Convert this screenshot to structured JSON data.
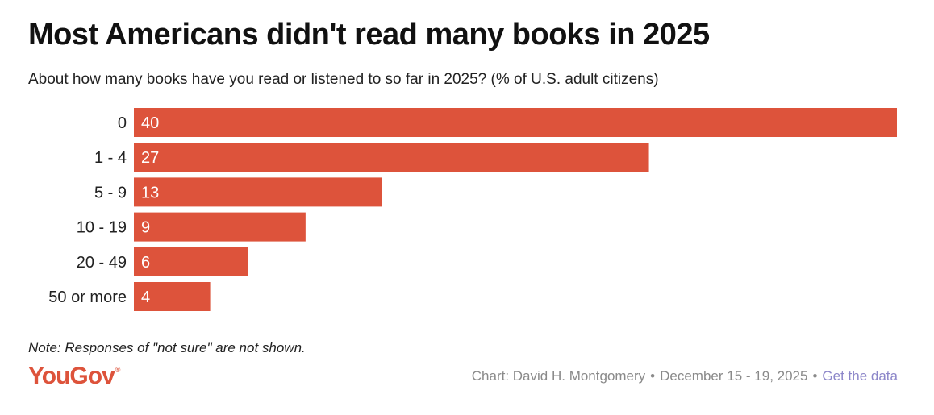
{
  "title": "Most Americans didn't read many books in 2025",
  "subtitle": "About how many books have you read or listened to so far in 2025? (% of U.S. adult citizens)",
  "chart_data": {
    "type": "bar",
    "orientation": "horizontal",
    "categories": [
      "0",
      "1 - 4",
      "5 - 9",
      "10 - 19",
      "20 - 49",
      "50 or more"
    ],
    "values": [
      40,
      27,
      13,
      9,
      6,
      4
    ],
    "value_labels": [
      "40",
      "27",
      "13",
      "9",
      "6",
      "4"
    ],
    "xlim": [
      0,
      40
    ],
    "bar_color": "#dd533b",
    "title": "Most Americans didn't read many books in 2025",
    "xlabel": "",
    "ylabel": ""
  },
  "note": "Note: Responses of \"not sure\" are not shown.",
  "logo": {
    "text": "YouGov",
    "mark": "®",
    "color": "#dd533b"
  },
  "footer": {
    "chart_credit": "Chart: David H. Montgomery",
    "separator": "•",
    "date_range": "December 15 - 19, 2025",
    "data_link": "Get the data",
    "link_color": "#8c86c9"
  }
}
